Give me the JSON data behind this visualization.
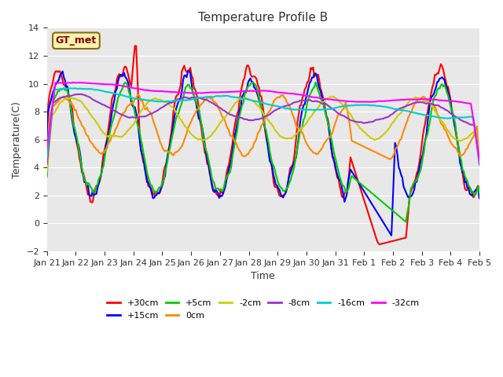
{
  "title": "Temperature Profile B",
  "xlabel": "Time",
  "ylabel": "Temperature(C)",
  "ylim": [
    -2,
    14
  ],
  "background_color": "#e8e8e8",
  "annotation_text": "GT_met",
  "annotation_box_color": "#f5f5b0",
  "annotation_border_color": "#8B6914",
  "series": {
    "+30cm": {
      "color": "#ff0000",
      "lw": 1.5
    },
    "+15cm": {
      "color": "#0000ff",
      "lw": 1.5
    },
    "+5cm": {
      "color": "#00cc00",
      "lw": 1.5
    },
    "0cm": {
      "color": "#ff8800",
      "lw": 1.5
    },
    "-2cm": {
      "color": "#cccc00",
      "lw": 1.5
    },
    "-8cm": {
      "color": "#9933cc",
      "lw": 1.5
    },
    "-16cm": {
      "color": "#00cccc",
      "lw": 1.5
    },
    "-32cm": {
      "color": "#ff00ff",
      "lw": 1.5
    }
  },
  "xtick_labels": [
    "Jan 21",
    "Jan 22",
    "Jan 23",
    "Jan 24",
    "Jan 25",
    "Jan 26",
    "Jan 27",
    "Jan 28",
    "Jan 29",
    "Jan 30",
    "Jan 31",
    "Feb 1",
    "Feb 2",
    "Feb 3",
    "Feb 4",
    "Feb 5"
  ],
  "num_points": 360
}
